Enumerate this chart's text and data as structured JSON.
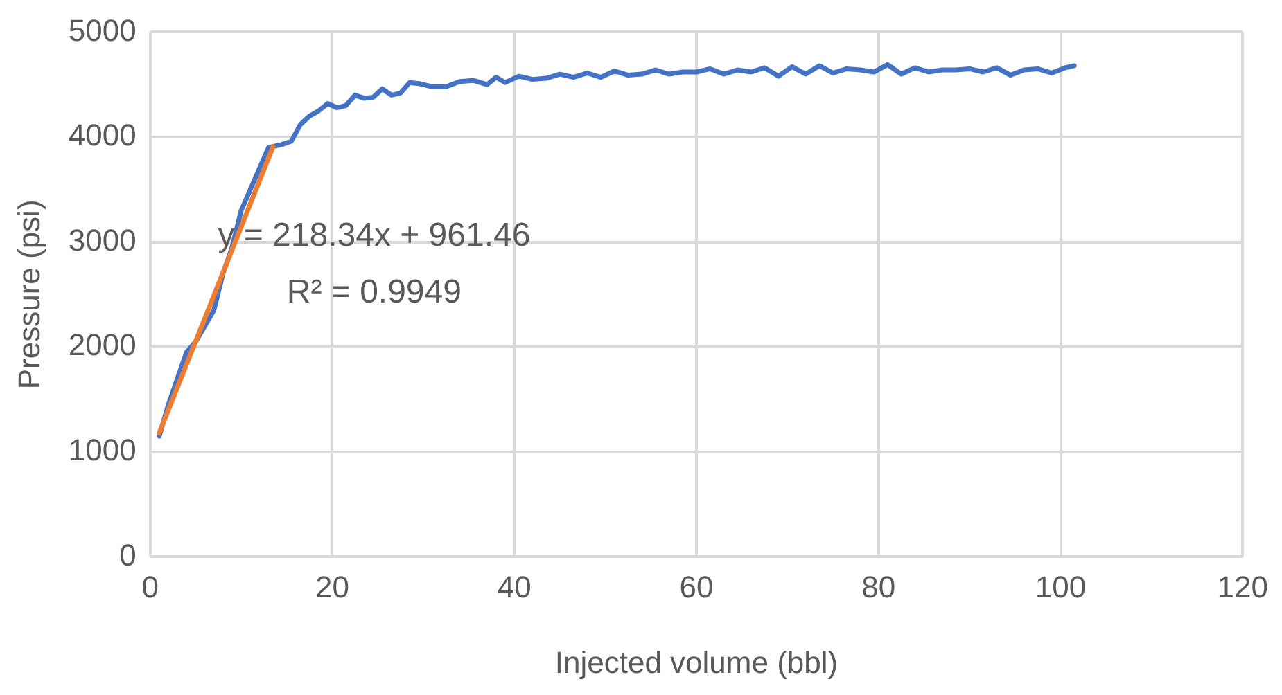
{
  "chart_data": {
    "type": "line",
    "xlabel": "Injected volume (bbl)",
    "ylabel": "Pressure (psi)",
    "xlim": [
      0,
      120
    ],
    "xticks": [
      0,
      20,
      40,
      60,
      80,
      100,
      120
    ],
    "ylim": [
      0,
      5000
    ],
    "yticks": [
      0,
      1000,
      2000,
      3000,
      4000,
      5000
    ],
    "grid": true,
    "legend": false,
    "marker": "none",
    "line_style": "solid",
    "series": [
      {
        "color": "#4472c4",
        "x": [
          1,
          2,
          3,
          4,
          5,
          6,
          7,
          8,
          9,
          10,
          11,
          12,
          13,
          14.5,
          15.5,
          16.5,
          17.5,
          18.5,
          19.5,
          20.5,
          21.5,
          22.5,
          23.5,
          24.5,
          25.5,
          26.5,
          27.5,
          28.5,
          29.5,
          31,
          32.5,
          34,
          35.5,
          37,
          38,
          39,
          40.5,
          42,
          43.5,
          45,
          46.5,
          48,
          49.5,
          51,
          52.5,
          54,
          55.5,
          57,
          58.5,
          60,
          61.5,
          63,
          64.5,
          66,
          67.5,
          69,
          70.5,
          72,
          73.5,
          75,
          76.5,
          78,
          79.5,
          81,
          82.5,
          84,
          85.5,
          87,
          88.5,
          90,
          91.5,
          93,
          94.5,
          96,
          97.5,
          99,
          100.5,
          101.5
        ],
        "values": [
          1150,
          1450,
          1700,
          1950,
          2050,
          2200,
          2350,
          2700,
          2950,
          3300,
          3500,
          3700,
          3900,
          3930,
          3960,
          4120,
          4200,
          4250,
          4320,
          4280,
          4300,
          4400,
          4370,
          4380,
          4460,
          4400,
          4420,
          4520,
          4510,
          4480,
          4480,
          4530,
          4540,
          4500,
          4570,
          4520,
          4580,
          4550,
          4560,
          4600,
          4570,
          4610,
          4570,
          4630,
          4590,
          4600,
          4640,
          4600,
          4620,
          4620,
          4650,
          4600,
          4640,
          4620,
          4660,
          4580,
          4670,
          4600,
          4680,
          4610,
          4650,
          4640,
          4620,
          4690,
          4600,
          4660,
          4620,
          4640,
          4640,
          4650,
          4620,
          4660,
          4590,
          4640,
          4650,
          4610,
          4660,
          4680
        ]
      },
      {
        "type": "line",
        "color": "#ed7d31",
        "x": [
          1,
          13.5
        ],
        "values": [
          1180,
          3910
        ]
      }
    ],
    "annotations": [
      "y = 218.34x + 961.46",
      "R² = 0.9949"
    ]
  }
}
